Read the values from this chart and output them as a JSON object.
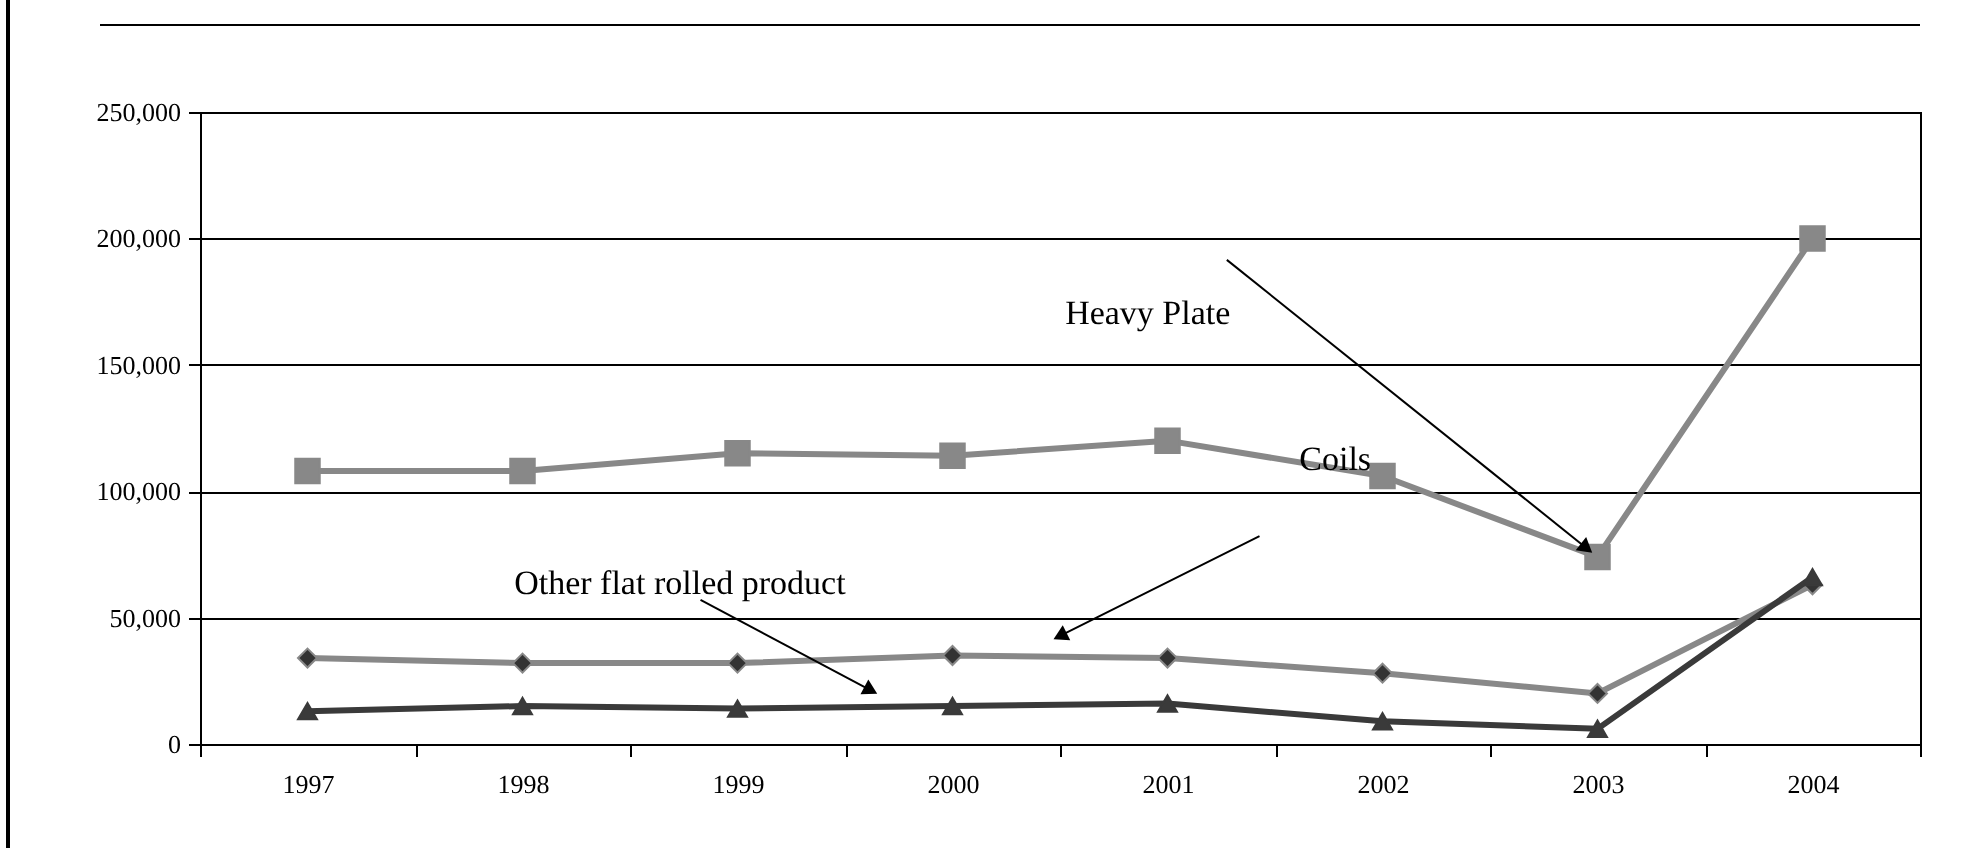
{
  "chart_data": {
    "type": "line",
    "categories": [
      "1997",
      "1998",
      "1999",
      "2000",
      "2001",
      "2002",
      "2003",
      "2004"
    ],
    "series": [
      {
        "color": "#888888",
        "marker": "square",
        "values": [
          108000,
          108000,
          115000,
          114000,
          120000,
          106000,
          74000,
          200000
        ]
      },
      {
        "color": "#888888",
        "marker": "diamond",
        "values": [
          34000,
          32000,
          32000,
          35000,
          34000,
          28000,
          20000,
          63000
        ]
      },
      {
        "color": "#3a3a3a",
        "marker": "triangle",
        "values": [
          13000,
          15000,
          14000,
          15000,
          16000,
          9000,
          6000,
          66000
        ]
      }
    ],
    "ylim": [
      0,
      250000
    ],
    "yticks": [
      {
        "value": 0,
        "label": "0"
      },
      {
        "value": 50000,
        "label": "50,000"
      },
      {
        "value": 100000,
        "label": "100,000"
      },
      {
        "value": 150000,
        "label": "150,000"
      },
      {
        "value": 200000,
        "label": "200,000"
      },
      {
        "value": 250000,
        "label": "250,000"
      }
    ],
    "grid": "y",
    "line_style": "solid",
    "annotations": [
      {
        "text": "Heavy Plate",
        "x": "2003",
        "y": 74000
      },
      "Coils",
      "Other flat rolled product"
    ]
  }
}
